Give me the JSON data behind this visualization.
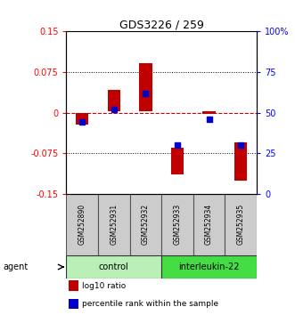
{
  "title": "GDS3226 / 259",
  "samples": [
    "GSM252890",
    "GSM252931",
    "GSM252932",
    "GSM252933",
    "GSM252934",
    "GSM252935"
  ],
  "log10_ratio_bottom": [
    -0.022,
    0.002,
    0.002,
    -0.115,
    -0.003,
    -0.125
  ],
  "log10_ratio_top": [
    0.0,
    0.042,
    0.092,
    -0.065,
    0.003,
    -0.055
  ],
  "percentile_rank": [
    44,
    52,
    62,
    30,
    46,
    30
  ],
  "ylim_left": [
    -0.15,
    0.15
  ],
  "ylim_right": [
    0,
    100
  ],
  "yticks_left": [
    -0.15,
    -0.075,
    0,
    0.075,
    0.15
  ],
  "yticks_left_labels": [
    "-0.15",
    "-0.075",
    "0",
    "0.075",
    "0.15"
  ],
  "yticks_right": [
    0,
    25,
    50,
    75,
    100
  ],
  "yticks_right_labels": [
    "0",
    "25",
    "50",
    "75",
    "100%"
  ],
  "bar_color": "#c00000",
  "dot_color": "#0000cc",
  "zero_line_color": "#cc0000",
  "agent_groups": [
    {
      "label": "control",
      "start": 0,
      "end": 3,
      "color": "#b8f0b8"
    },
    {
      "label": "interleukin-22",
      "start": 3,
      "end": 6,
      "color": "#44dd44"
    }
  ],
  "legend_items": [
    {
      "color": "#c00000",
      "label": "log10 ratio"
    },
    {
      "color": "#0000cc",
      "label": "percentile rank within the sample"
    }
  ],
  "agent_label": "agent",
  "bar_width": 0.4,
  "dot_size": 18
}
